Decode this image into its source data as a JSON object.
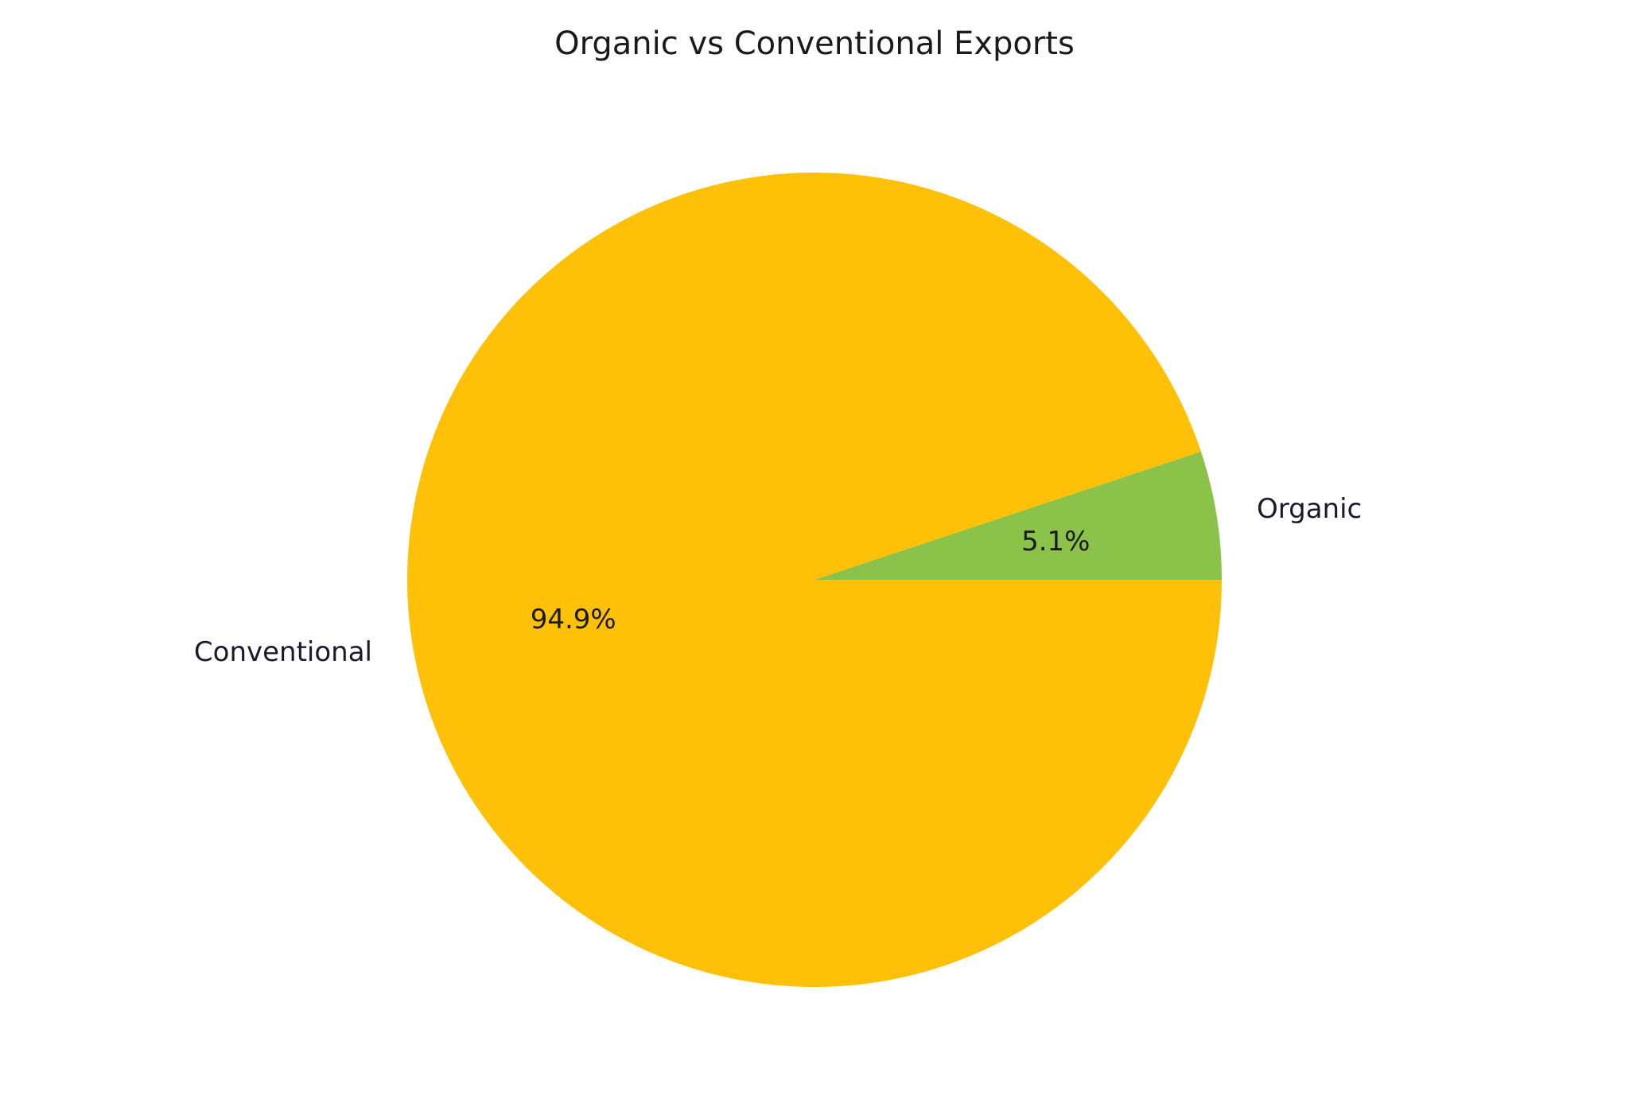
{
  "chart_data": {
    "type": "pie",
    "title": "Organic vs Conventional Exports",
    "slices": [
      {
        "label": "Organic",
        "value": 5.1,
        "pct_label": "5.1%",
        "color": "#8BC34A"
      },
      {
        "label": "Conventional",
        "value": 94.9,
        "pct_label": "94.9%",
        "color": "#FFC107"
      }
    ],
    "start_angle_deg": 0,
    "direction": "counterclockwise"
  }
}
